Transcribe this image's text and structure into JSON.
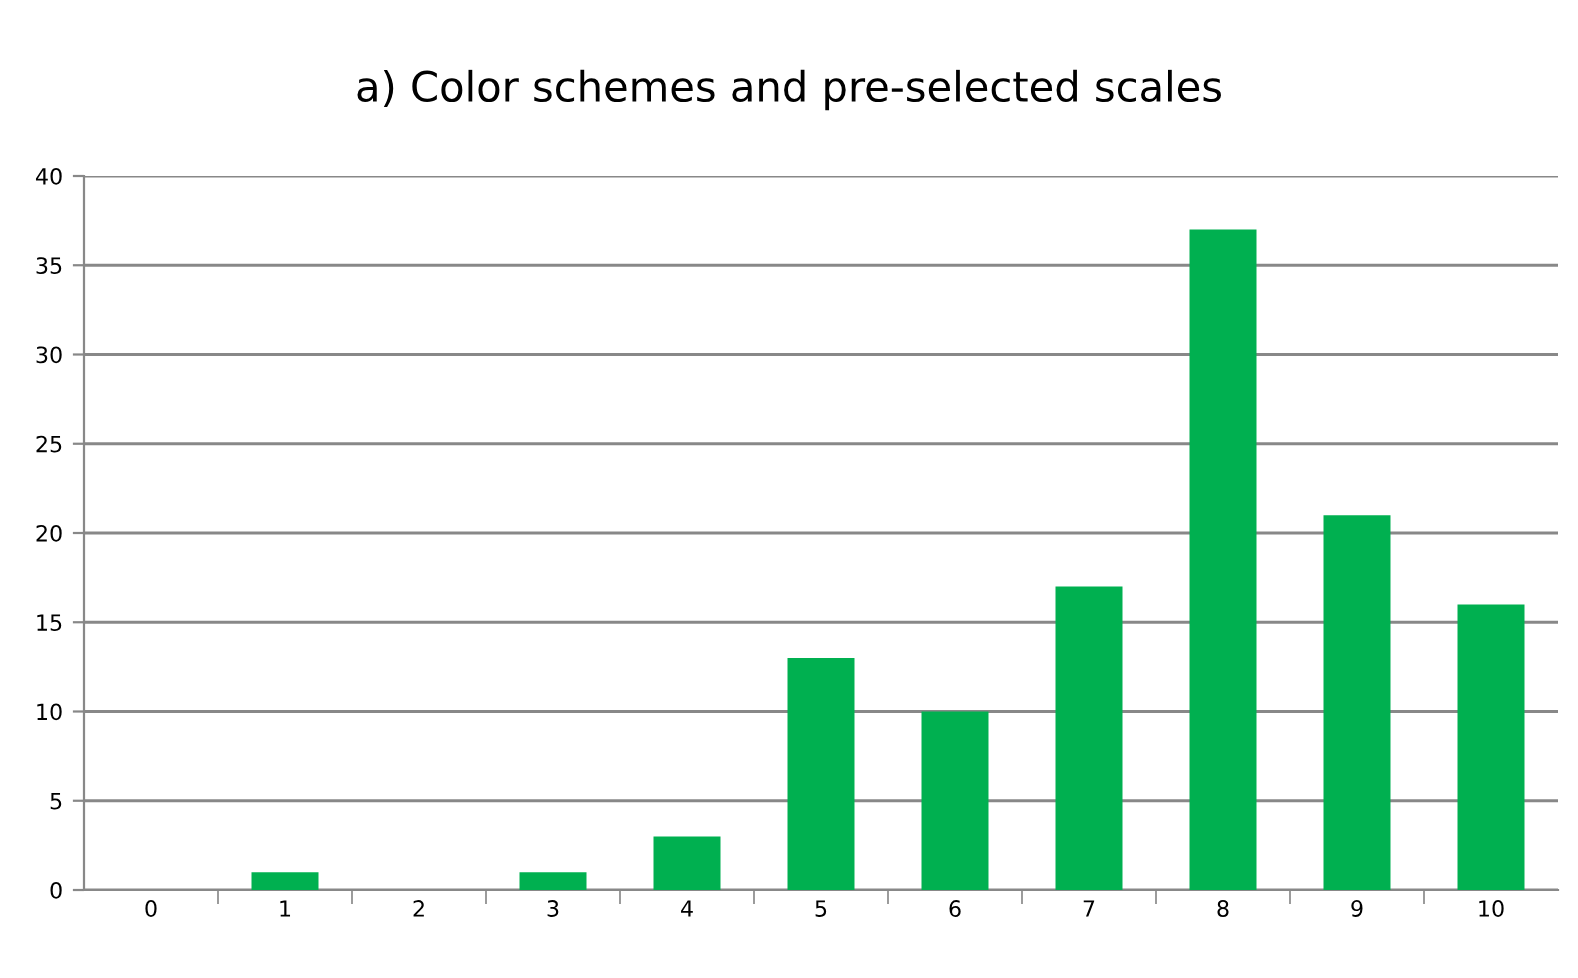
{
  "chart_data": {
    "type": "bar",
    "title": "a) Color schemes and pre-selected scales",
    "categories": [
      "0",
      "1",
      "2",
      "3",
      "4",
      "5",
      "6",
      "7",
      "8",
      "9",
      "10"
    ],
    "values": [
      0,
      1,
      0,
      1,
      3,
      13,
      10,
      17,
      37,
      21,
      16
    ],
    "color": "#00b050",
    "ylim": [
      0,
      40
    ],
    "yticks": [
      0,
      5,
      10,
      15,
      20,
      25,
      30,
      35,
      40
    ],
    "grid": "y"
  }
}
